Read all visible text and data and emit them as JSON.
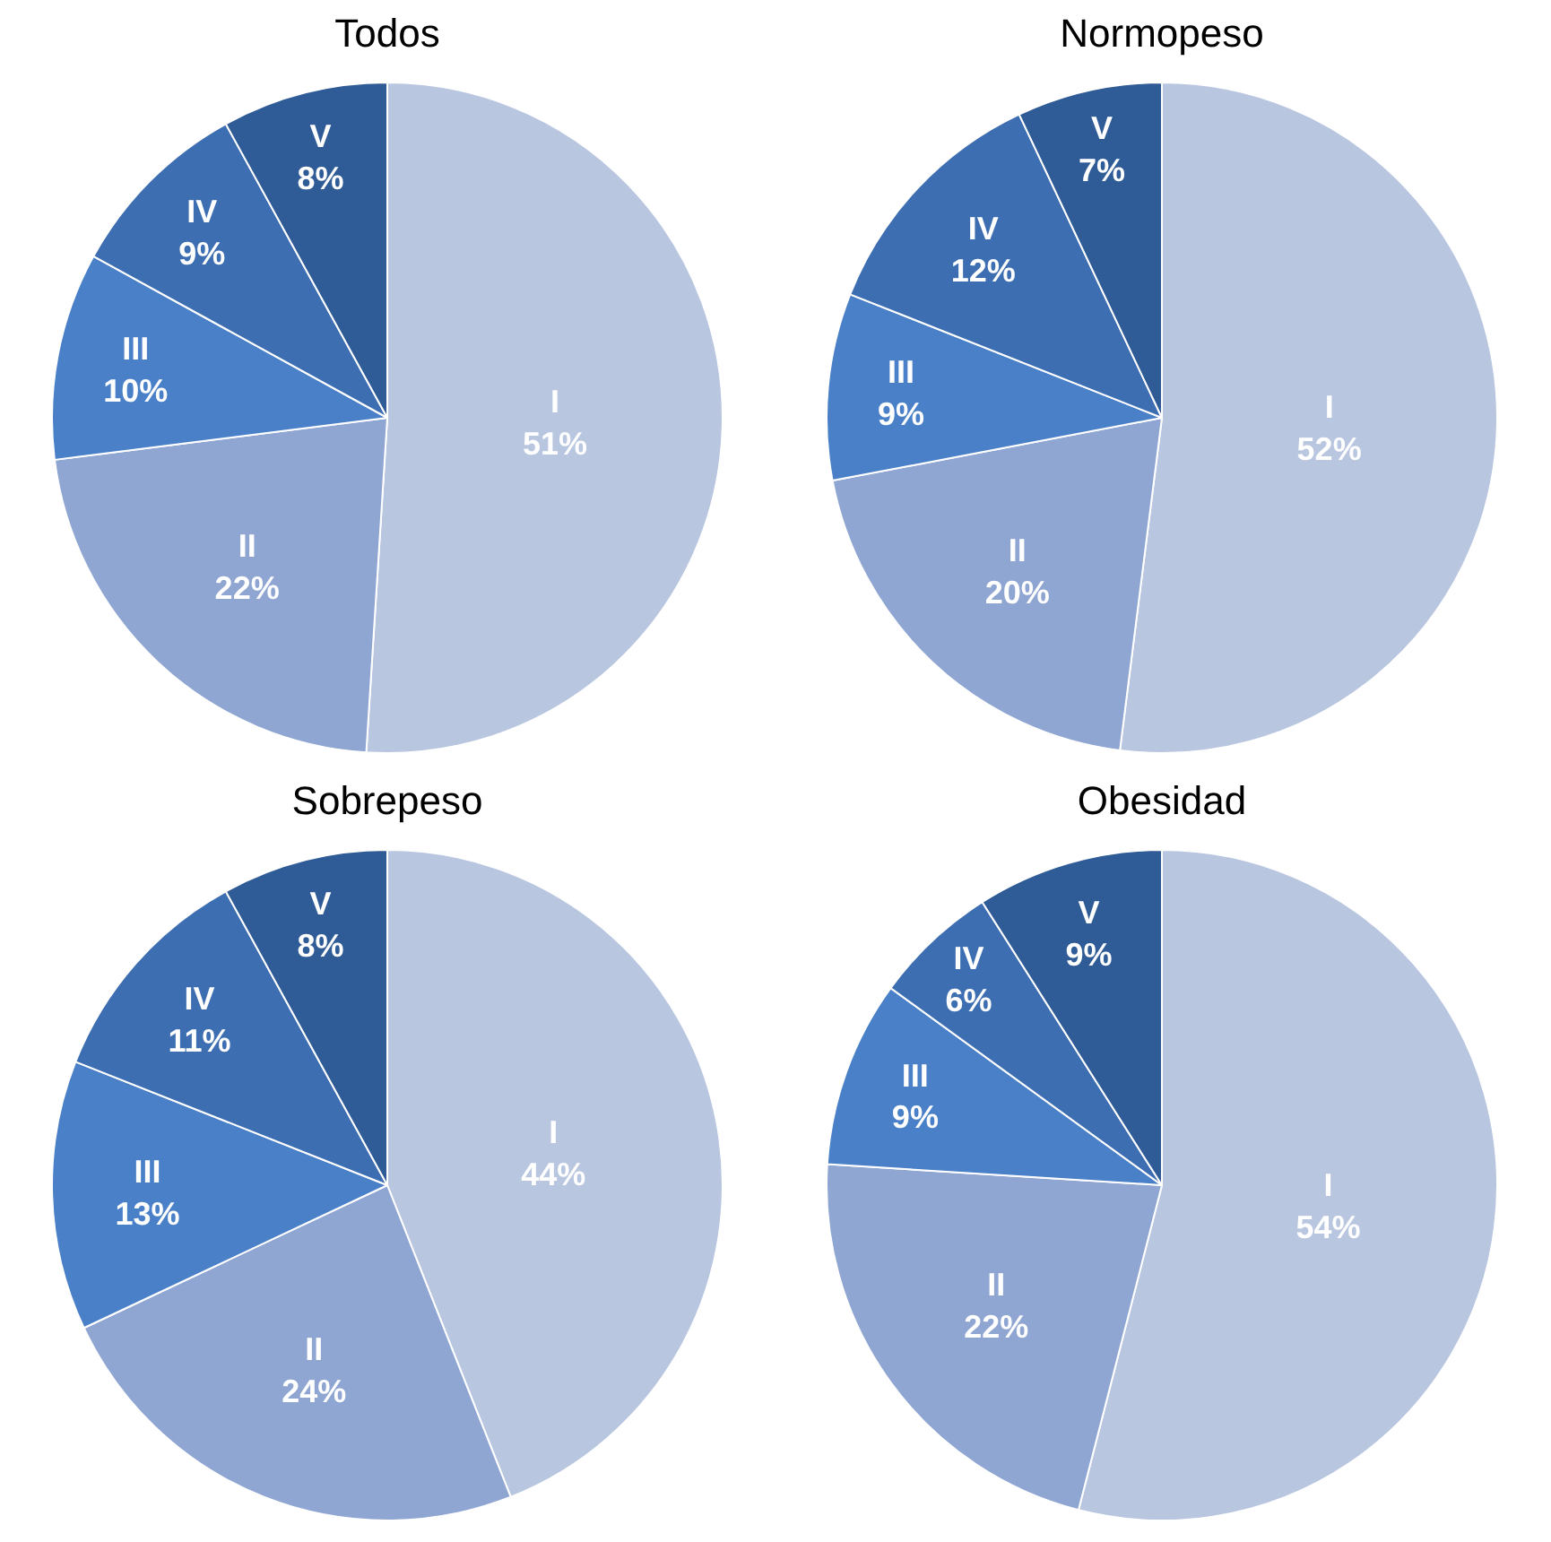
{
  "chart_data": [
    {
      "type": "pie",
      "title": "Todos",
      "categories": [
        "I",
        "II",
        "III",
        "IV",
        "V"
      ],
      "values": [
        51,
        22,
        10,
        9,
        8
      ],
      "value_labels": [
        "51%",
        "22%",
        "10%",
        "9%",
        "8%"
      ],
      "colors": [
        "#b9c6e0",
        "#8fa5d2",
        "#4a80c8",
        "#3d6eb2",
        "#2f5b96"
      ]
    },
    {
      "type": "pie",
      "title": "Normopeso",
      "categories": [
        "I",
        "II",
        "III",
        "IV",
        "V"
      ],
      "values": [
        52,
        20,
        9,
        12,
        7
      ],
      "value_labels": [
        "52%",
        "20%",
        "9%",
        "12%",
        "7%"
      ],
      "colors": [
        "#b9c6e0",
        "#8fa5d2",
        "#4a80c8",
        "#3d6eb2",
        "#2f5b96"
      ]
    },
    {
      "type": "pie",
      "title": "Sobrepeso",
      "categories": [
        "I",
        "II",
        "III",
        "IV",
        "V"
      ],
      "values": [
        44,
        24,
        13,
        11,
        8
      ],
      "value_labels": [
        "44%",
        "24%",
        "13%",
        "11%",
        "8%"
      ],
      "colors": [
        "#b9c6e0",
        "#8fa5d2",
        "#4a80c8",
        "#3d6eb2",
        "#2f5b96"
      ]
    },
    {
      "type": "pie",
      "title": "Obesidad",
      "categories": [
        "I",
        "II",
        "III",
        "IV",
        "V"
      ],
      "values": [
        54,
        22,
        9,
        6,
        9
      ],
      "value_labels": [
        "54%",
        "22%",
        "9%",
        "6%",
        "9%"
      ],
      "colors": [
        "#b9c6e0",
        "#8fa5d2",
        "#4a80c8",
        "#3d6eb2",
        "#2f5b96"
      ]
    }
  ]
}
